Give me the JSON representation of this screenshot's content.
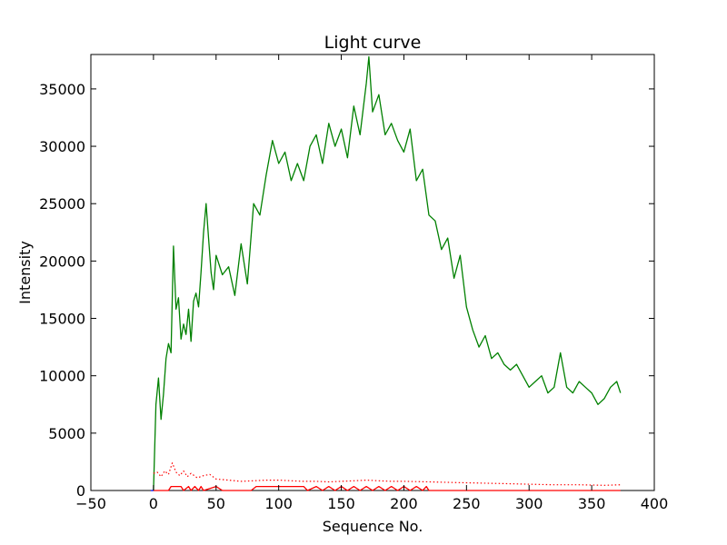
{
  "chart_data": {
    "type": "line",
    "title": "Light curve",
    "xlabel": "Sequence No.",
    "ylabel": "Intensity",
    "xlim": [
      -50,
      400
    ],
    "ylim": [
      0,
      38000
    ],
    "x_ticks": [
      -50,
      0,
      50,
      100,
      150,
      200,
      250,
      300,
      350,
      400
    ],
    "y_ticks": [
      0,
      5000,
      10000,
      15000,
      20000,
      25000,
      30000,
      35000
    ],
    "grid": false,
    "legend": "none",
    "series": [
      {
        "color": "#008000",
        "style": "solid",
        "x": [
          0,
          2,
          4,
          6,
          8,
          10,
          12,
          14,
          16,
          18,
          20,
          22,
          24,
          26,
          28,
          30,
          32,
          34,
          36,
          38,
          40,
          42,
          44,
          46,
          48,
          50,
          55,
          60,
          65,
          70,
          75,
          80,
          85,
          90,
          95,
          100,
          105,
          110,
          115,
          120,
          125,
          130,
          135,
          140,
          145,
          150,
          155,
          160,
          165,
          170,
          172,
          175,
          180,
          185,
          190,
          195,
          200,
          205,
          210,
          215,
          220,
          225,
          230,
          235,
          240,
          245,
          250,
          255,
          260,
          265,
          270,
          275,
          280,
          285,
          290,
          295,
          300,
          305,
          310,
          315,
          320,
          325,
          330,
          335,
          340,
          345,
          350,
          355,
          360,
          365,
          370,
          373
        ],
        "y": [
          0,
          7500,
          9800,
          6200,
          8400,
          11500,
          12800,
          12000,
          21300,
          15800,
          16800,
          13200,
          14500,
          13600,
          15800,
          13000,
          16500,
          17200,
          16000,
          19000,
          22500,
          25000,
          22000,
          19000,
          17500,
          20500,
          18800,
          19500,
          17000,
          21500,
          18000,
          25000,
          24000,
          27500,
          30500,
          28500,
          29500,
          27000,
          28500,
          27000,
          30000,
          31000,
          28500,
          32000,
          30000,
          31500,
          29000,
          33500,
          31000,
          35500,
          37800,
          33000,
          34500,
          31000,
          32000,
          30500,
          29500,
          31500,
          27000,
          28000,
          24000,
          23500,
          21000,
          22000,
          18500,
          20500,
          16000,
          14000,
          12500,
          13500,
          11500,
          12000,
          11000,
          10500,
          11000,
          10000,
          9000,
          9500,
          10000,
          8500,
          9000,
          12000,
          9000,
          8500,
          9500,
          9000,
          8500,
          7500,
          8000,
          9000,
          9500,
          8500
        ]
      },
      {
        "color": "#ff0000",
        "style": "dotted",
        "x": [
          0,
          3,
          6,
          9,
          12,
          15,
          18,
          21,
          24,
          27,
          30,
          35,
          40,
          45,
          50,
          60,
          70,
          80,
          90,
          100,
          110,
          120,
          130,
          140,
          150,
          160,
          170,
          180,
          190,
          200,
          220,
          240,
          260,
          280,
          300,
          320,
          340,
          360,
          373
        ],
        "y": [
          1500,
          1600,
          1200,
          1700,
          1400,
          2400,
          1600,
          1300,
          1700,
          1200,
          1500,
          1100,
          1300,
          1400,
          1000,
          900,
          800,
          850,
          900,
          900,
          850,
          800,
          800,
          750,
          800,
          850,
          900,
          850,
          800,
          800,
          750,
          700,
          650,
          600,
          550,
          500,
          500,
          450,
          500
        ]
      },
      {
        "color": "#ff0000",
        "style": "solid",
        "x": [
          0,
          12,
          14,
          22,
          24,
          28,
          30,
          33,
          36,
          38,
          40,
          50,
          55,
          60,
          78,
          82,
          88,
          120,
          123,
          130,
          135,
          140,
          145,
          150,
          155,
          160,
          165,
          170,
          175,
          180,
          185,
          190,
          195,
          200,
          205,
          210,
          215,
          218,
          220,
          222,
          373
        ],
        "y": [
          0,
          0,
          350,
          350,
          0,
          350,
          0,
          350,
          0,
          350,
          0,
          350,
          0,
          0,
          0,
          350,
          350,
          350,
          0,
          350,
          0,
          350,
          0,
          350,
          0,
          350,
          0,
          350,
          0,
          350,
          0,
          350,
          0,
          350,
          0,
          350,
          0,
          350,
          0,
          0,
          0
        ]
      },
      {
        "color": "#0000ff",
        "style": "solid",
        "x": [
          -2,
          0
        ],
        "y": [
          0,
          0
        ]
      }
    ]
  }
}
